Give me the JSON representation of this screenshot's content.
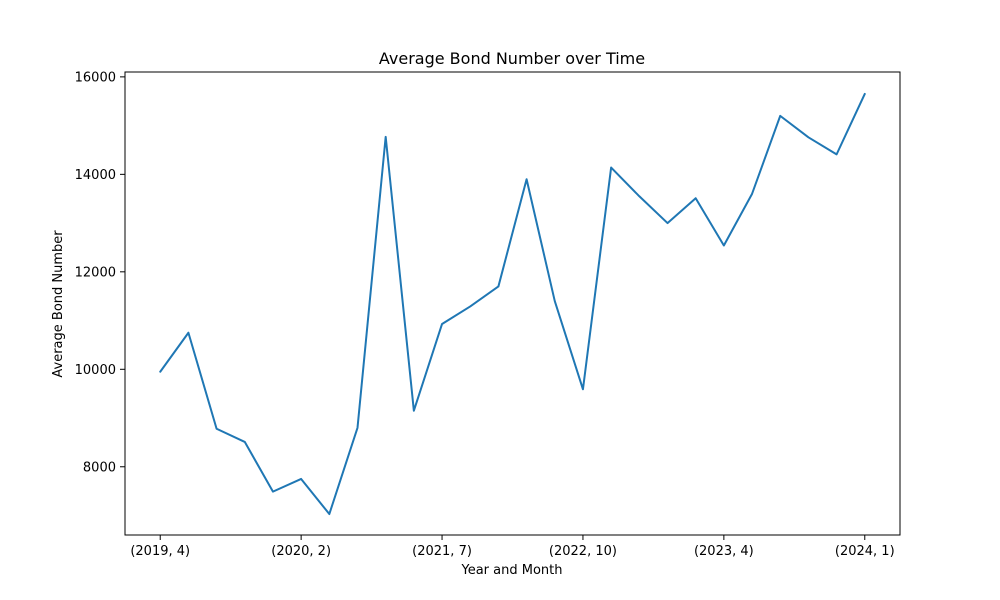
{
  "chart_data": {
    "type": "line",
    "title": "Average Bond Number over Time",
    "xlabel": "Year and Month",
    "ylabel": "Average Bond Number",
    "x_tick_labels": [
      "(2019, 4)",
      "(2020, 2)",
      "(2021, 7)",
      "(2022, 10)",
      "(2023, 4)",
      "(2024, 1)"
    ],
    "x_tick_positions": [
      0,
      5,
      10,
      15,
      20,
      25
    ],
    "y_ticks": [
      8000,
      10000,
      12000,
      14000,
      16000
    ],
    "xlim": [
      -1.25,
      26.25
    ],
    "ylim": [
      6600,
      16100
    ],
    "grid": false,
    "series": [
      {
        "color": "#1f77b4",
        "x": [
          0,
          1,
          2,
          3,
          4,
          5,
          6,
          7,
          8,
          9,
          10,
          11,
          12,
          13,
          14,
          15,
          16,
          17,
          18,
          19,
          20,
          21,
          22,
          23,
          24,
          25
        ],
        "values": [
          9950,
          10750,
          8780,
          8510,
          7490,
          7750,
          7030,
          8800,
          14770,
          9150,
          10930,
          11290,
          11700,
          13900,
          11400,
          9590,
          14140,
          13550,
          13000,
          13510,
          12540,
          13600,
          15200,
          14760,
          14410,
          15650
        ]
      }
    ]
  }
}
